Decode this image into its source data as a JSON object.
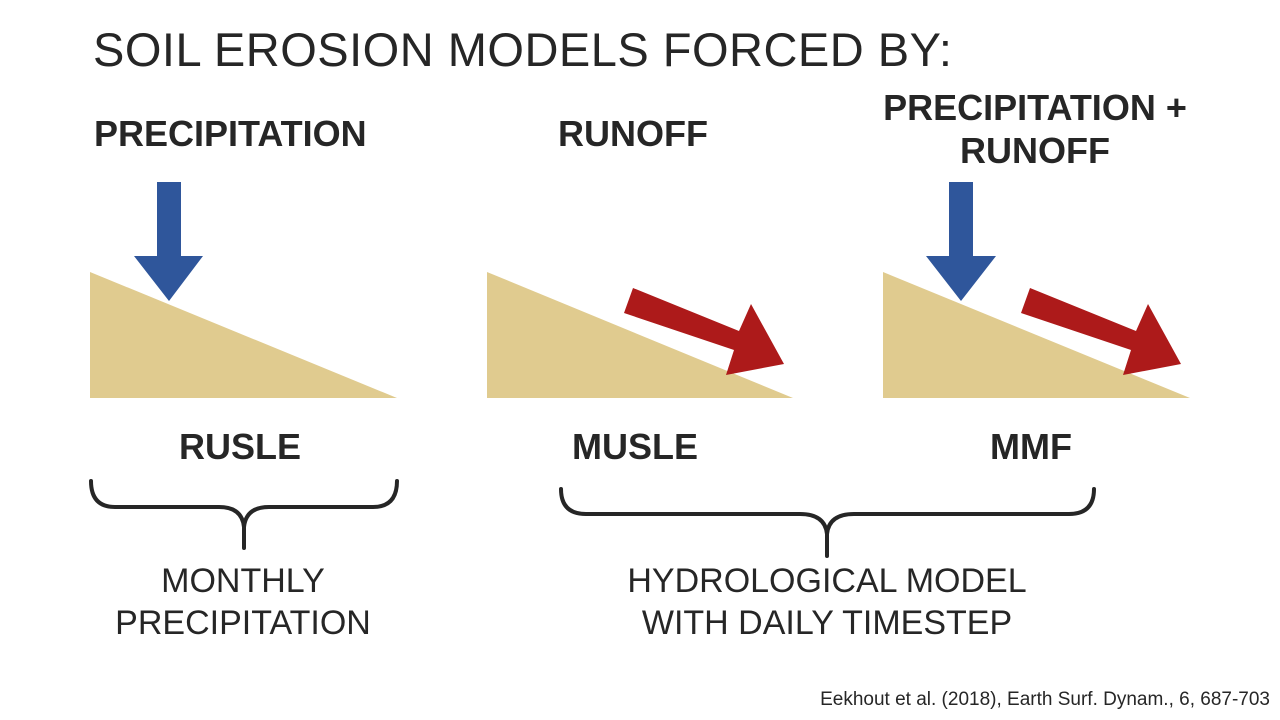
{
  "title": "SOIL EROSION MODELS FORCED BY:",
  "forcing": {
    "precipitation": "PRECIPITATION",
    "runoff": "RUNOFF",
    "combined_line1": "PRECIPITATION +",
    "combined_line2": "RUNOFF"
  },
  "models": {
    "rusle": "RUSLE",
    "musle": "MUSLE",
    "mmf": "MMF"
  },
  "inputs": {
    "monthly_line1": "MONTHLY",
    "monthly_line2": "PRECIPITATION",
    "hydro_line1": "HYDROLOGICAL MODEL",
    "hydro_line2": "WITH DAILY TIMESTEP"
  },
  "citation": "Eekhout et al. (2018), Earth Surf. Dynam., 6, 687-703",
  "colors": {
    "slope": "#e0cb8f",
    "precipitation_arrow": "#2f569b",
    "runoff_arrow": "#ad1a1a",
    "brace": "#262626",
    "text": "#262626"
  },
  "icons": {
    "precipitation": "down-arrow-icon",
    "runoff": "diagonal-arrow-icon"
  }
}
